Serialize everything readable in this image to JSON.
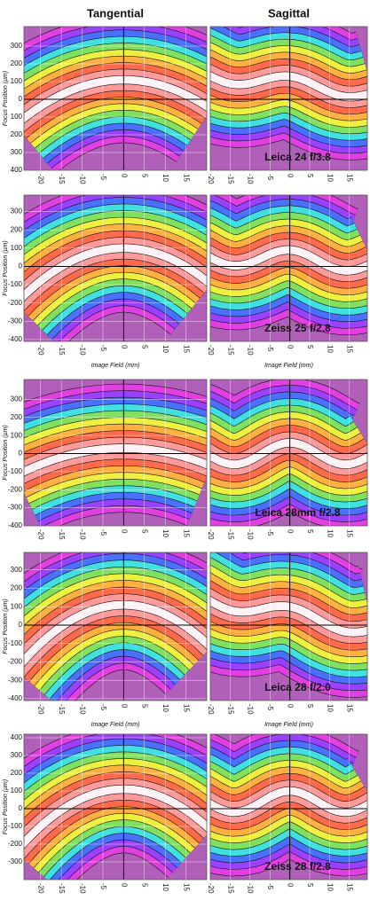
{
  "chart_data": [
    {
      "type": "contour",
      "title": "Tangential",
      "y_label": "Focus Position (µm)",
      "xlim": [
        -24,
        20
      ],
      "xticks": [
        -20,
        -15,
        -10,
        -5,
        0,
        5,
        10,
        15
      ],
      "ylim": [
        -400,
        410
      ],
      "yticks": [
        300,
        200,
        100,
        0,
        {
          "value": -100,
          "label": "100"
        },
        {
          "value": -200,
          "label": "200"
        },
        {
          "value": -300,
          "label": "300"
        },
        {
          "value": -400,
          "label": "400"
        }
      ],
      "grid": true
    },
    {
      "type": "contour",
      "title": "Sagittal",
      "annotation": "Leica 24 f/3.8",
      "xlim": [
        -20,
        19.5
      ],
      "xticks": [
        -20,
        -15,
        -10,
        -5,
        0,
        5,
        10,
        15
      ],
      "ylim": [
        -400,
        410
      ],
      "grid": true
    },
    {
      "type": "contour",
      "y_label": "Focus Position (µm)",
      "x_label": "Image Field (mm)",
      "xlim": [
        -24,
        20
      ],
      "xticks": [
        -20,
        -15,
        -10,
        -5,
        0,
        5,
        10,
        15
      ],
      "ylim": [
        -410,
        390
      ],
      "yticks": [
        300,
        200,
        100,
        0,
        -100,
        -200,
        -300,
        -400
      ],
      "grid": true
    },
    {
      "type": "contour",
      "annotation": "Zeiss 25 f/2.8",
      "x_label": "Image Field (mm)",
      "xlim": [
        -20,
        19.5
      ],
      "xticks": [
        -20,
        -15,
        -10,
        -5,
        0,
        5,
        10,
        15
      ],
      "ylim": [
        -410,
        390
      ],
      "grid": true
    },
    {
      "type": "contour",
      "y_label": "Focus Position (µm)",
      "xlim": [
        -24,
        20
      ],
      "xticks": [
        -20,
        -15,
        -10,
        -5,
        0,
        5,
        10,
        15
      ],
      "ylim": [
        -400,
        410
      ],
      "yticks": [
        300,
        200,
        100,
        0,
        -100,
        -200,
        -300,
        -400
      ],
      "grid": true
    },
    {
      "type": "contour",
      "annotation": "Leica 28mm f/2.8",
      "xlim": [
        -20,
        19.5
      ],
      "xticks": [
        -20,
        -15,
        -10,
        -5,
        0,
        5,
        10,
        15
      ],
      "ylim": [
        -400,
        410
      ],
      "grid": true
    },
    {
      "type": "contour",
      "y_label": "Focus Position (µm)",
      "x_label": "Image Field (mm)",
      "xlim": [
        -24,
        20
      ],
      "xticks": [
        -20,
        -15,
        -10,
        -5,
        0,
        5,
        10,
        15
      ],
      "ylim": [
        -410,
        395
      ],
      "yticks": [
        300,
        200,
        100,
        0,
        -100,
        -200,
        -300,
        -400
      ],
      "grid": true
    },
    {
      "type": "contour",
      "annotation": "Leica 28 f/2.0",
      "x_label": "Image Field (mm)",
      "xlim": [
        -20,
        19.5
      ],
      "xticks": [
        -20,
        -15,
        -10,
        -5,
        0,
        5,
        10,
        15
      ],
      "ylim": [
        -410,
        395
      ],
      "grid": true
    },
    {
      "type": "contour",
      "y_label": "Focus Position (µm)",
      "xlim": [
        -24,
        20
      ],
      "xticks": [
        -20,
        -15,
        -10,
        -5,
        0,
        5,
        10,
        15
      ],
      "ylim": [
        -400,
        420
      ],
      "yticks": [
        400,
        300,
        200,
        100,
        0,
        -100,
        -200,
        -300
      ],
      "grid": true
    },
    {
      "type": "contour",
      "annotation": "Zeiss 28 f/2.8",
      "xlim": [
        -20,
        19.5
      ],
      "xticks": [
        -20,
        -15,
        -10,
        -5,
        0,
        5,
        10,
        15
      ],
      "ylim": [
        -400,
        420
      ],
      "grid": true
    }
  ]
}
